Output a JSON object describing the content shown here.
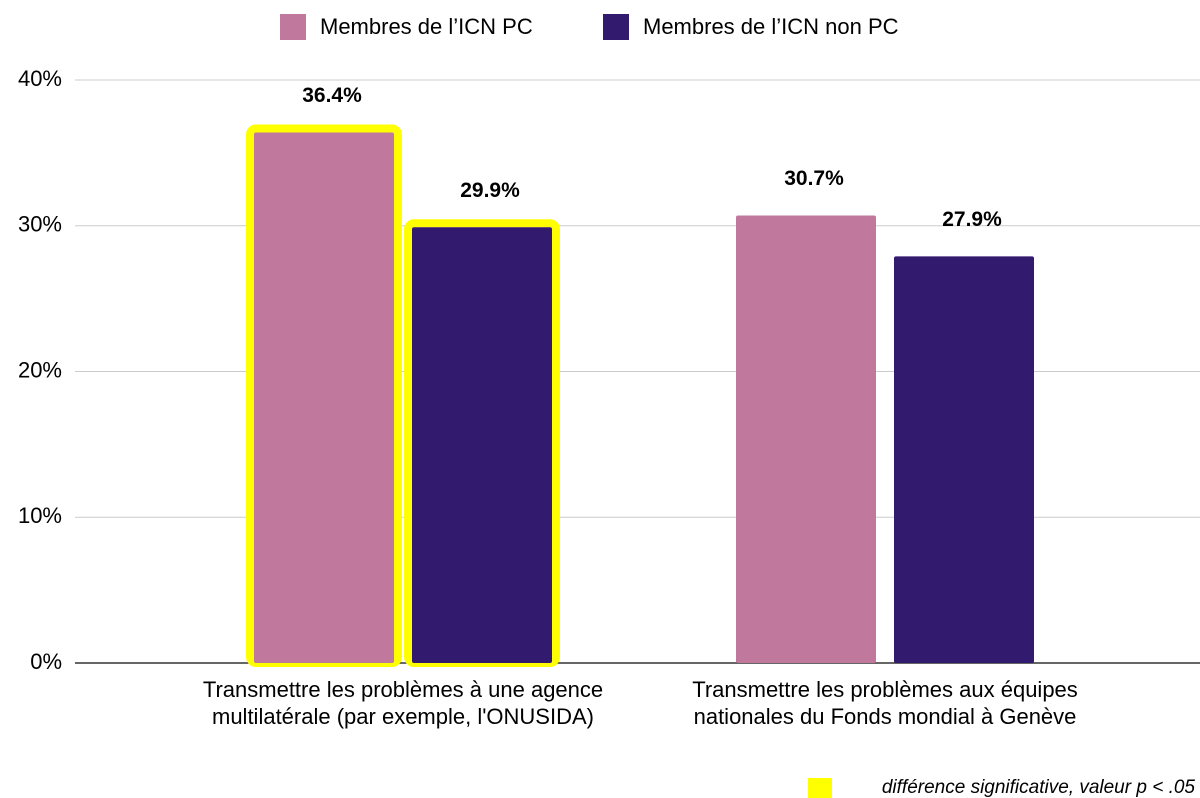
{
  "chart_data": {
    "type": "bar",
    "categories": [
      "Transmettre les problèmes à une agence multilatérale (par exemple, l'ONUSIDA)",
      "Transmettre les problèmes aux équipes nationales du Fonds mondial à Genève"
    ],
    "series": [
      {
        "name": "Membres de l’ICN PC",
        "color": "#c0799c",
        "values": [
          36.4,
          30.7
        ],
        "value_labels": [
          "36.4%",
          "30.7%"
        ]
      },
      {
        "name": "Membres de l’ICN non PC",
        "color": "#321b6e",
        "values": [
          29.9,
          27.9
        ],
        "value_labels": [
          "29.9%",
          "27.9%"
        ]
      }
    ],
    "ylim": [
      0,
      40
    ],
    "yticks": [
      {
        "value": 0,
        "label": "0%"
      },
      {
        "value": 10,
        "label": "10%"
      },
      {
        "value": 20,
        "label": "20%"
      },
      {
        "value": 30,
        "label": "30%"
      },
      {
        "value": 40,
        "label": "40%"
      }
    ],
    "grid": true,
    "legend": "top",
    "significant": [
      true,
      false
    ],
    "highlight_color": "#ffff00",
    "annotation": "différence significative, valeur p < .05"
  }
}
